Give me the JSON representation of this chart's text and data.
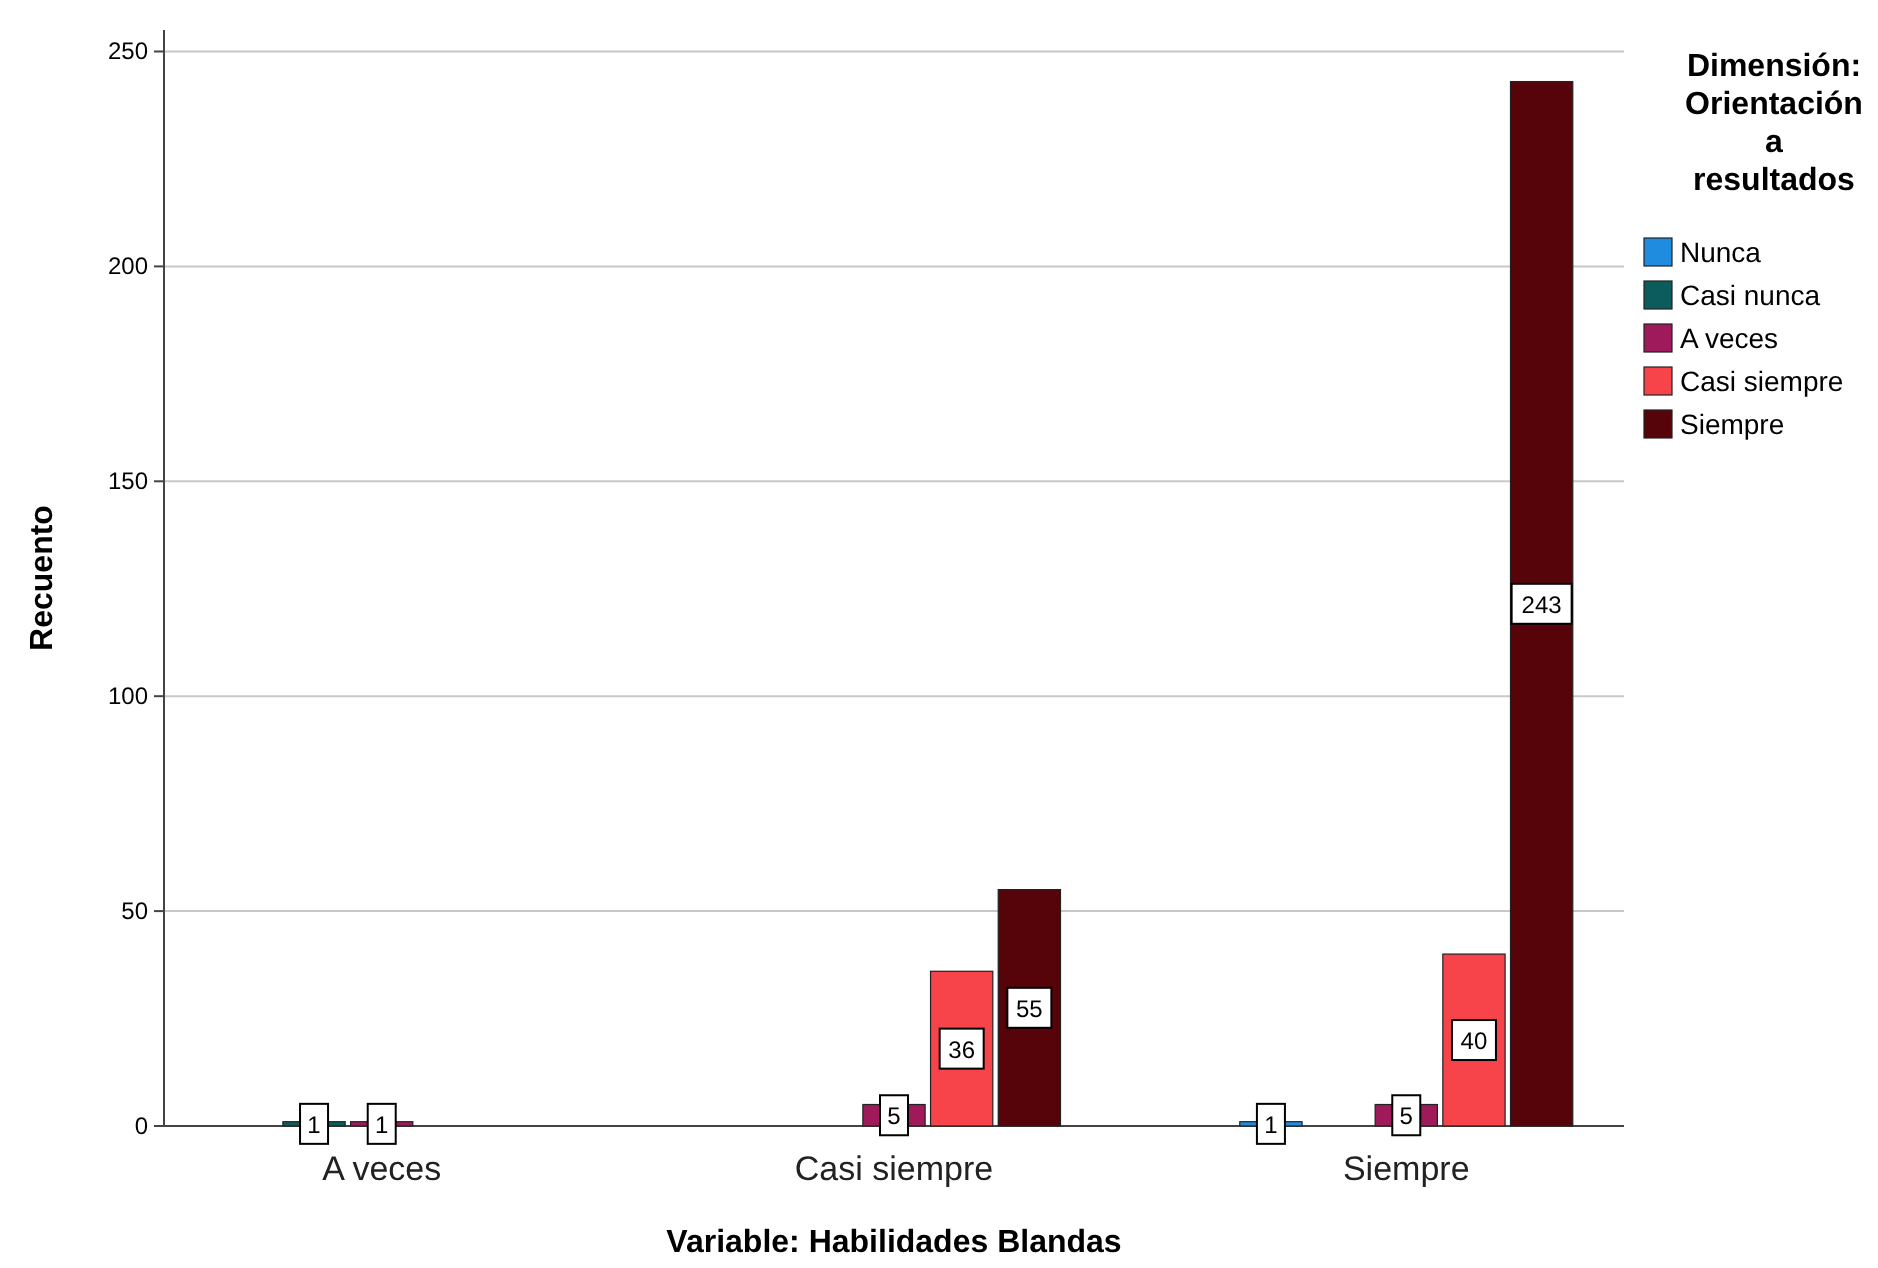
{
  "chart_data": {
    "type": "bar",
    "xlabel": "Variable: Habilidades Blandas",
    "ylabel": "Recuento",
    "legend_title": "Dimensión: Orientación a resultados",
    "categories": [
      "A veces",
      "Casi siempre",
      "Siempre"
    ],
    "series": [
      {
        "name": "Nunca",
        "color": "#1f8ce0",
        "values": [
          null,
          null,
          1
        ]
      },
      {
        "name": "Casi nunca",
        "color": "#0d5c5c",
        "values": [
          1,
          null,
          null
        ]
      },
      {
        "name": "A veces",
        "color": "#9e1a5a",
        "values": [
          1,
          5,
          5
        ]
      },
      {
        "name": "Casi siempre",
        "color": "#f7444a",
        "values": [
          null,
          36,
          40
        ]
      },
      {
        "name": "Siempre",
        "color": "#56040a",
        "values": [
          null,
          55,
          243
        ]
      }
    ],
    "ylim": [
      0,
      255
    ],
    "yticks": [
      0,
      50,
      100,
      150,
      200,
      250
    ],
    "grid": "y",
    "legend": "right",
    "data_labels": true
  }
}
